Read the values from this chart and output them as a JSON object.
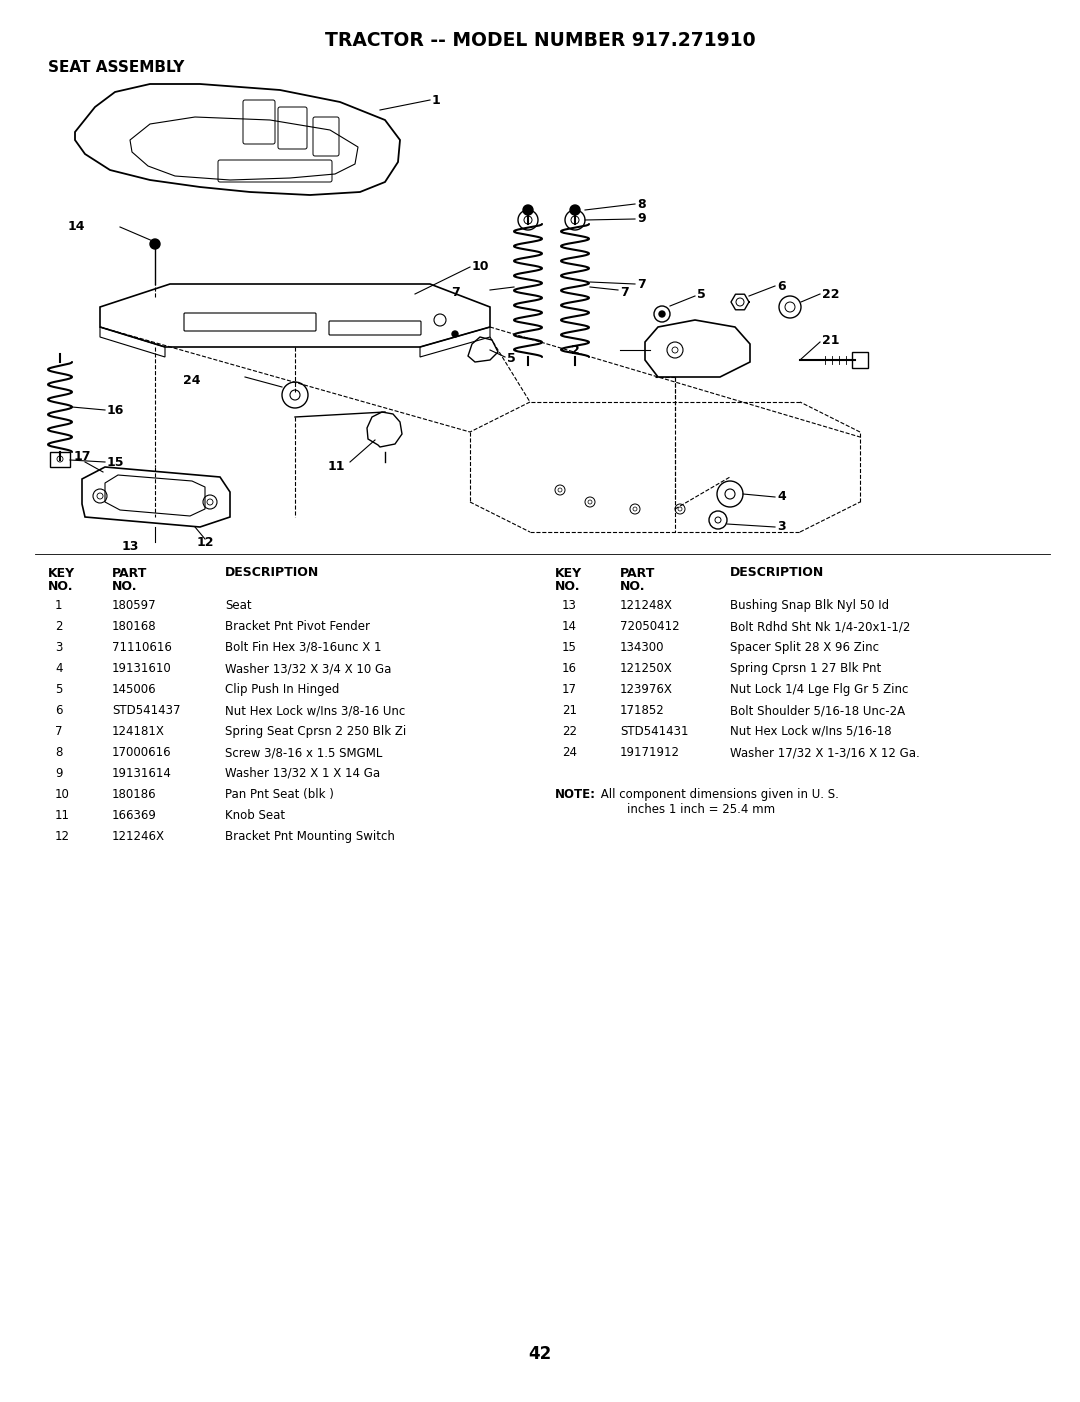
{
  "title": "TRACTOR -- MODEL NUMBER 917.271910",
  "subtitle": "SEAT ASSEMBLY",
  "page_number": "42",
  "background_color": "#ffffff",
  "text_color": "#000000",
  "left_parts": [
    [
      "1",
      "180597",
      "Seat"
    ],
    [
      "2",
      "180168",
      "Bracket Pnt Pivot Fender"
    ],
    [
      "3",
      "71110616",
      "Bolt Fin Hex 3/8-16unc X 1"
    ],
    [
      "4",
      "19131610",
      "Washer 13/32 X 3/4 X 10 Ga"
    ],
    [
      "5",
      "145006",
      "Clip Push In Hinged"
    ],
    [
      "6",
      "STD541437",
      "Nut Hex Lock w/Ins 3/8-16 Unc"
    ],
    [
      "7",
      "124181X",
      "Spring Seat Cprsn 2 250 Blk Zi"
    ],
    [
      "8",
      "17000616",
      "Screw 3/8-16 x 1.5 SMGML"
    ],
    [
      "9",
      "19131614",
      "Washer 13/32 X 1 X 14 Ga"
    ],
    [
      "10",
      "180186",
      "Pan Pnt Seat (blk )"
    ],
    [
      "11",
      "166369",
      "Knob Seat"
    ],
    [
      "12",
      "121246X",
      "Bracket Pnt Mounting Switch"
    ]
  ],
  "right_parts": [
    [
      "13",
      "121248X",
      "Bushing Snap Blk Nyl 50 Id"
    ],
    [
      "14",
      "72050412",
      "Bolt Rdhd Sht Nk 1/4-20x1-1/2"
    ],
    [
      "15",
      "134300",
      "Spacer Split 28 X 96 Zinc"
    ],
    [
      "16",
      "121250X",
      "Spring Cprsn 1 27 Blk Pnt"
    ],
    [
      "17",
      "123976X",
      "Nut Lock 1/4 Lge Flg Gr 5 Zinc"
    ],
    [
      "21",
      "171852",
      "Bolt Shoulder 5/16-18 Unc-2A"
    ],
    [
      "22",
      "STD541431",
      "Nut Hex Lock w/Ins 5/16-18"
    ],
    [
      "24",
      "19171912",
      "Washer 17/32 X 1-3/16 X 12 Ga."
    ]
  ],
  "note_bold": "NOTE:",
  "note_text": " All component dimensions given in U. S.\n        inches 1 inch = 25.4 mm"
}
